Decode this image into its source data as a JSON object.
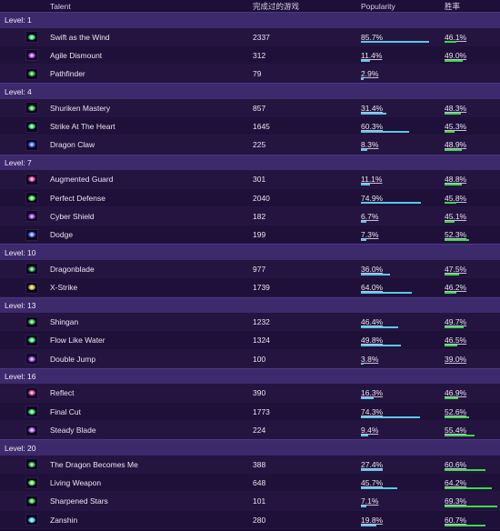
{
  "header": {
    "talent": "Talent",
    "games": "完成过的游戏",
    "popularity": "Popularity",
    "winrate": "胜率"
  },
  "colors": {
    "popularity_bar": "#5bc8e8",
    "winrate_bar": "#3ed84a",
    "level_band": "#3d2a6c"
  },
  "levels": [
    {
      "label": "Level: 1",
      "talents": [
        {
          "name": "Swift as the Wind",
          "games": "2337",
          "popularity": "85.7%",
          "popularity_value": 85.7,
          "winrate": "46.1%",
          "winrate_value": 46.1,
          "icon": "green-orb-icon",
          "icon_color": "#2ee070"
        },
        {
          "name": "Agile Dismount",
          "games": "312",
          "popularity": "11.4%",
          "popularity_value": 11.4,
          "winrate": "49.0%",
          "winrate_value": 49.0,
          "icon": "purple-spark-icon",
          "icon_color": "#b34ee6"
        },
        {
          "name": "Pathfinder",
          "games": "79",
          "popularity": "2.9%",
          "popularity_value": 2.9,
          "winrate": "",
          "winrate_value": 0,
          "icon": "green-leaf-icon",
          "icon_color": "#36b13c"
        }
      ]
    },
    {
      "label": "Level: 4",
      "talents": [
        {
          "name": "Shuriken Mastery",
          "games": "857",
          "popularity": "31.4%",
          "popularity_value": 31.4,
          "winrate": "48.3%",
          "winrate_value": 48.3,
          "icon": "green-star-icon",
          "icon_color": "#35c546"
        },
        {
          "name": "Strike At The Heart",
          "games": "1645",
          "popularity": "60.3%",
          "popularity_value": 60.3,
          "winrate": "45.3%",
          "winrate_value": 45.3,
          "icon": "green-orb-icon",
          "icon_color": "#2ee070"
        },
        {
          "name": "Dragon Claw",
          "games": "225",
          "popularity": "8.3%",
          "popularity_value": 8.3,
          "winrate": "48.9%",
          "winrate_value": 48.9,
          "icon": "blue-claw-icon",
          "icon_color": "#4a6cf0"
        }
      ]
    },
    {
      "label": "Level: 7",
      "talents": [
        {
          "name": "Augmented Guard",
          "games": "301",
          "popularity": "11.1%",
          "popularity_value": 11.1,
          "winrate": "48.8%",
          "winrate_value": 48.8,
          "icon": "pink-shield-icon",
          "icon_color": "#e84aa2"
        },
        {
          "name": "Perfect Defense",
          "games": "2040",
          "popularity": "74.9%",
          "popularity_value": 74.9,
          "winrate": "45.8%",
          "winrate_value": 45.8,
          "icon": "green-spark-icon",
          "icon_color": "#3fe04e"
        },
        {
          "name": "Cyber Shield",
          "games": "182",
          "popularity": "6.7%",
          "popularity_value": 6.7,
          "winrate": "45.1%",
          "winrate_value": 45.1,
          "icon": "purple-shield-icon",
          "icon_color": "#9c4ad8"
        },
        {
          "name": "Dodge",
          "games": "199",
          "popularity": "7.3%",
          "popularity_value": 7.3,
          "winrate": "52.3%",
          "winrate_value": 52.3,
          "icon": "blue-dodge-icon",
          "icon_color": "#5a7ae8"
        }
      ]
    },
    {
      "label": "Level: 10",
      "talents": [
        {
          "name": "Dragonblade",
          "games": "977",
          "popularity": "36.0%",
          "popularity_value": 36.0,
          "winrate": "47.5%",
          "winrate_value": 47.5,
          "icon": "green-blade-icon",
          "icon_color": "#30b04a"
        },
        {
          "name": "X-Strike",
          "games": "1739",
          "popularity": "64.0%",
          "popularity_value": 64.0,
          "winrate": "46.2%",
          "winrate_value": 46.2,
          "icon": "gold-strike-icon",
          "icon_color": "#d0b43a"
        }
      ]
    },
    {
      "label": "Level: 13",
      "talents": [
        {
          "name": "Shingan",
          "games": "1232",
          "popularity": "46.4%",
          "popularity_value": 46.4,
          "winrate": "49.7%",
          "winrate_value": 49.7,
          "icon": "green-star-icon",
          "icon_color": "#35c546"
        },
        {
          "name": "Flow Like Water",
          "games": "1324",
          "popularity": "49.8%",
          "popularity_value": 49.8,
          "winrate": "46.5%",
          "winrate_value": 46.5,
          "icon": "green-orb-icon",
          "icon_color": "#2ee070"
        },
        {
          "name": "Double Jump",
          "games": "100",
          "popularity": "3.8%",
          "popularity_value": 3.8,
          "winrate": "39.0%",
          "winrate_value": 39.0,
          "icon": "purple-jump-icon",
          "icon_color": "#a45ae0"
        }
      ]
    },
    {
      "label": "Level: 16",
      "talents": [
        {
          "name": "Reflect",
          "games": "390",
          "popularity": "16.3%",
          "popularity_value": 16.3,
          "winrate": "46.9%",
          "winrate_value": 46.9,
          "icon": "pink-reflect-icon",
          "icon_color": "#e84aa2"
        },
        {
          "name": "Final Cut",
          "games": "1773",
          "popularity": "74.3%",
          "popularity_value": 74.3,
          "winrate": "52.6%",
          "winrate_value": 52.6,
          "icon": "green-orb-icon",
          "icon_color": "#2ee070"
        },
        {
          "name": "Steady Blade",
          "games": "224",
          "popularity": "9.4%",
          "popularity_value": 9.4,
          "winrate": "55.4%",
          "winrate_value": 55.4,
          "icon": "purple-orb-icon",
          "icon_color": "#b060f0"
        }
      ]
    },
    {
      "label": "Level: 20",
      "talents": [
        {
          "name": "The Dragon Becomes Me",
          "games": "388",
          "popularity": "27.4%",
          "popularity_value": 27.4,
          "winrate": "60.6%",
          "winrate_value": 60.6,
          "icon": "green-dragon-icon",
          "icon_color": "#36b84a"
        },
        {
          "name": "Living Weapon",
          "games": "648",
          "popularity": "45.7%",
          "popularity_value": 45.7,
          "winrate": "64.2%",
          "winrate_value": 64.2,
          "icon": "green-weapon-icon",
          "icon_color": "#5ee04a"
        },
        {
          "name": "Sharpened Stars",
          "games": "101",
          "popularity": "7.1%",
          "popularity_value": 7.1,
          "winrate": "69.3%",
          "winrate_value": 69.3,
          "icon": "green-star-icon",
          "icon_color": "#35c546"
        },
        {
          "name": "Zanshin",
          "games": "280",
          "popularity": "19.8%",
          "popularity_value": 19.8,
          "winrate": "60.7%",
          "winrate_value": 60.7,
          "icon": "cyan-spark-icon",
          "icon_color": "#40d6e8"
        }
      ]
    }
  ]
}
